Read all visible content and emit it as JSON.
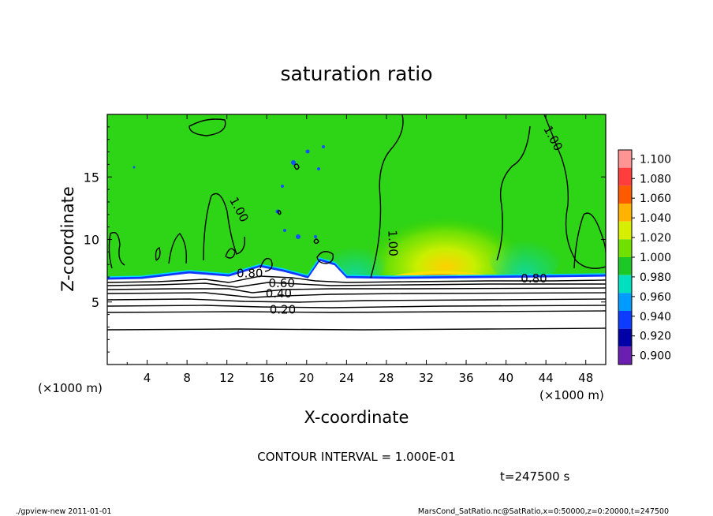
{
  "chart_data": {
    "type": "heatmap",
    "title": "saturation ratio",
    "xlabel": "X-coordinate",
    "ylabel": "Z-coordinate",
    "x_unit_left": "(×1000 m)",
    "x_unit_right": "(×1000 m)",
    "xlim": [
      0,
      50
    ],
    "ylim": [
      0,
      20
    ],
    "xticks": [
      4,
      8,
      12,
      16,
      20,
      24,
      28,
      32,
      36,
      40,
      44,
      48
    ],
    "yticks": [
      5,
      10,
      15
    ],
    "colorbar": {
      "levels": [
        "1.100",
        "1.080",
        "1.060",
        "1.040",
        "1.020",
        "1.000",
        "0.980",
        "0.960",
        "0.940",
        "0.920",
        "0.900"
      ],
      "colors": [
        "#ff9494",
        "#ff3d3d",
        "#ff5a00",
        "#ffb300",
        "#d7ee00",
        "#70e000",
        "#1cc825",
        "#00dfc0",
        "#009bff",
        "#0b3cff",
        "#0000a6",
        "#6a1fb0"
      ]
    },
    "contour_labels": [
      {
        "text": "1.00",
        "x": 13.0,
        "z": 12.3
      },
      {
        "text": "1.00",
        "x": 28.4,
        "z": 9.7
      },
      {
        "text": "1.00",
        "x": 44.5,
        "z": 18.0
      },
      {
        "text": "0.80",
        "x": 14.3,
        "z": 7.1
      },
      {
        "text": "0.80",
        "x": 42.8,
        "z": 6.7
      },
      {
        "text": "0.60",
        "x": 17.5,
        "z": 6.3
      },
      {
        "text": "0.40",
        "x": 17.2,
        "z": 5.5
      },
      {
        "text": "0.20",
        "x": 17.6,
        "z": 4.2
      }
    ],
    "grid": false
  },
  "contour_interval": "CONTOUR INTERVAL = 1.000E-01",
  "time_label": "t=247500 s",
  "footer_left": "./gpview-new  2011-01-01",
  "footer_right": "MarsCond_SatRatio.nc@SatRatio,x=0:50000,z=0:20000,t=247500"
}
